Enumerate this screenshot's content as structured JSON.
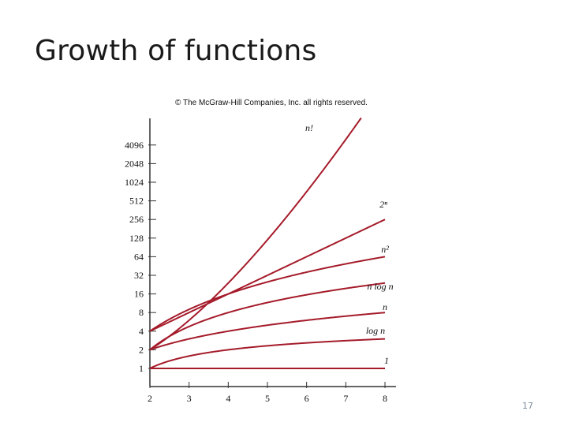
{
  "slide": {
    "title": "Growth of functions",
    "copyright": "© The McGraw-Hill Companies, Inc. all rights reserved.",
    "page_number": "17"
  },
  "colors": {
    "curve": "#a51b2a",
    "axis": "#333333"
  },
  "chart_data": {
    "type": "line",
    "title": "",
    "xlabel": "",
    "ylabel": "",
    "xlim": [
      2,
      8
    ],
    "ylim": [
      1,
      4096
    ],
    "yscale": "log2",
    "grid": false,
    "x_ticks": [
      "2",
      "3",
      "4",
      "5",
      "6",
      "7",
      "8"
    ],
    "y_ticks": [
      "1",
      "2",
      "4",
      "8",
      "16",
      "32",
      "64",
      "128",
      "256",
      "512",
      "1024",
      "2048",
      "4096"
    ],
    "series": [
      {
        "name": "n!",
        "expr": "n!",
        "label": "n!",
        "x": [
          2,
          3,
          4,
          5,
          6,
          7
        ],
        "y": [
          2,
          6,
          24,
          120,
          720,
          5040
        ]
      },
      {
        "name": "2^n",
        "expr": "2^n",
        "label": "2ⁿ",
        "x": [
          2,
          3,
          4,
          5,
          6,
          7,
          8
        ],
        "y": [
          4,
          8,
          16,
          32,
          64,
          128,
          256
        ]
      },
      {
        "name": "n^2",
        "expr": "n^2",
        "label": "n²",
        "x": [
          2,
          3,
          4,
          5,
          6,
          7,
          8
        ],
        "y": [
          4,
          9,
          16,
          25,
          36,
          49,
          64
        ]
      },
      {
        "name": "n log n",
        "expr": "n log n",
        "label": "n log n",
        "x": [
          2,
          3,
          4,
          5,
          6,
          7,
          8
        ],
        "y": [
          2,
          4.75,
          8,
          11.61,
          15.51,
          19.65,
          24
        ]
      },
      {
        "name": "n",
        "expr": "n",
        "label": "n",
        "x": [
          2,
          3,
          4,
          5,
          6,
          7,
          8
        ],
        "y": [
          2,
          3,
          4,
          5,
          6,
          7,
          8
        ]
      },
      {
        "name": "log n",
        "expr": "log n",
        "label": "log n",
        "x": [
          2,
          3,
          4,
          5,
          6,
          7,
          8
        ],
        "y": [
          1,
          1.58,
          2,
          2.32,
          2.58,
          2.81,
          3
        ]
      },
      {
        "name": "1",
        "expr": "1",
        "label": "1",
        "x": [
          2,
          3,
          4,
          5,
          6,
          7,
          8
        ],
        "y": [
          1,
          1,
          1,
          1,
          1,
          1,
          1
        ]
      }
    ]
  }
}
